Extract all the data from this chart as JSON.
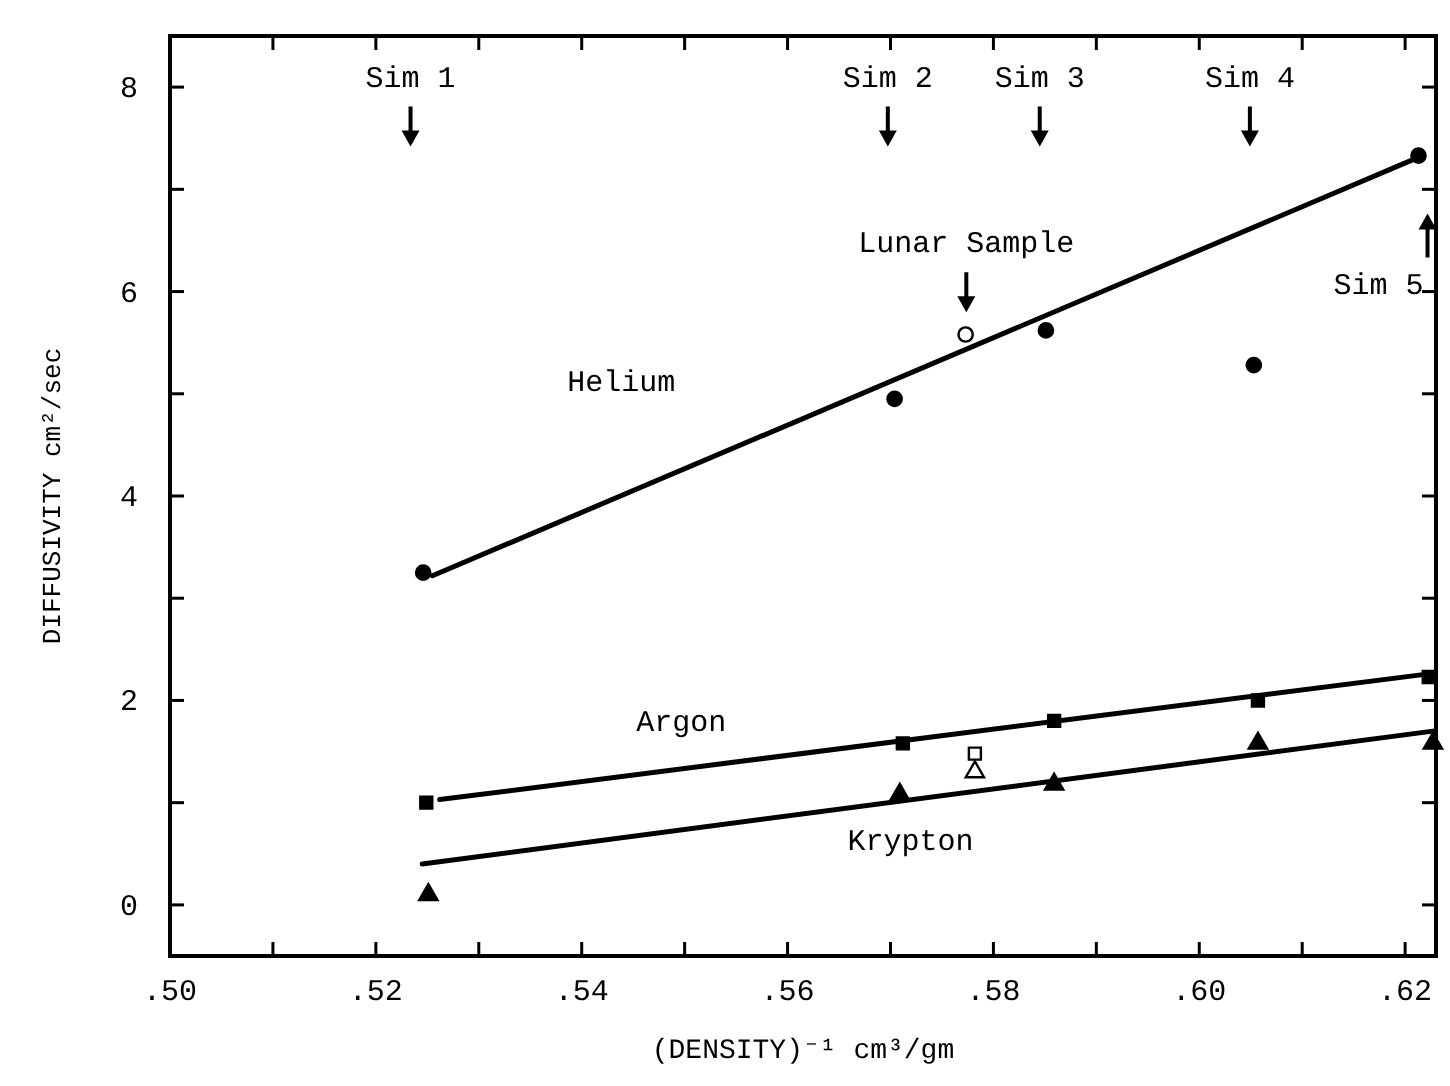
{
  "chart_data": {
    "type": "scatter",
    "xlabel": "(DENSITY)⁻¹ cm³/gm",
    "ylabel": "DIFFUSIVITY cm²/sec",
    "xlim": [
      0.5,
      0.623
    ],
    "ylim": [
      -0.5,
      8.5
    ],
    "xticks": [
      {
        "value": 0.5,
        "label": ".50"
      },
      {
        "value": 0.51,
        "label": null
      },
      {
        "value": 0.52,
        "label": ".52"
      },
      {
        "value": 0.53,
        "label": null
      },
      {
        "value": 0.54,
        "label": ".54"
      },
      {
        "value": 0.55,
        "label": null
      },
      {
        "value": 0.56,
        "label": ".56"
      },
      {
        "value": 0.57,
        "label": null
      },
      {
        "value": 0.58,
        "label": ".58"
      },
      {
        "value": 0.59,
        "label": null
      },
      {
        "value": 0.6,
        "label": ".60"
      },
      {
        "value": 0.61,
        "label": null
      },
      {
        "value": 0.62,
        "label": ".62"
      }
    ],
    "yticks": [
      0,
      {
        "value": 1,
        "label": null
      },
      2,
      {
        "value": 3,
        "label": null
      },
      4,
      {
        "value": 5,
        "label": null
      },
      6,
      {
        "value": 7,
        "label": null
      },
      8
    ],
    "series": [
      {
        "marker": "circle",
        "color": "#000000",
        "x": [
          0.5246,
          0.5704,
          0.5851,
          0.6053,
          0.6213
        ],
        "values": [
          3.25,
          4.95,
          5.62,
          5.28,
          7.33
        ]
      },
      {
        "type": "line",
        "name": "Helium",
        "marker": "none",
        "color": "#000000",
        "x": [
          0.5255,
          0.621
        ],
        "values": [
          3.22,
          7.3
        ]
      },
      {
        "marker": "square",
        "color": "#000000",
        "x": [
          0.5249,
          0.5712,
          0.5859,
          0.6057,
          0.6223
        ],
        "values": [
          1.0,
          1.58,
          1.8,
          2.0,
          2.23
        ]
      },
      {
        "type": "line",
        "name": "Argon",
        "marker": "none",
        "color": "#000000",
        "x": [
          0.5262,
          0.6223
        ],
        "values": [
          1.03,
          2.26
        ]
      },
      {
        "marker": "triangle",
        "color": "#000000",
        "x": [
          0.5251,
          0.5709,
          0.5859,
          0.6057,
          0.6227
        ],
        "values": [
          0.1,
          1.08,
          1.18,
          1.58,
          1.58
        ]
      },
      {
        "type": "line",
        "name": "Krypton",
        "marker": "none",
        "color": "#000000",
        "x": [
          0.5245,
          0.6227
        ],
        "values": [
          0.4,
          1.7
        ]
      },
      {
        "marker": "circle",
        "color": "#ffffff",
        "x": [
          0.5773
        ],
        "values": [
          5.58
        ]
      },
      {
        "marker": "square",
        "color": "#ffffff",
        "x": [
          0.5782
        ],
        "values": [
          1.48
        ]
      },
      {
        "marker": "triangle",
        "color": "#ffffff",
        "x": [
          0.5782
        ],
        "values": [
          1.3
        ]
      }
    ],
    "annotations": [
      "Sim 1",
      "Sim 2",
      "Sim 3",
      "Sim 4",
      "Sim 5",
      "Lunar Sample"
    ]
  }
}
